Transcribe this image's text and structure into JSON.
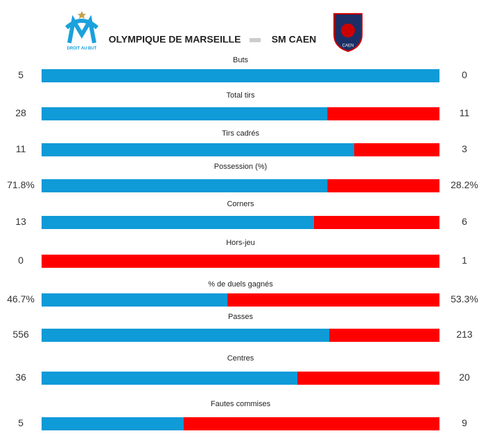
{
  "chart_data": {
    "type": "bar",
    "orientation": "horizontal",
    "stacked": "percent",
    "title": "OLYMPIQUE DE MARSEILLE",
    "subtitle": "SM CAEN",
    "annotations": [
      "DROIT AU BUT",
      "CAEN"
    ],
    "categories": [
      "Buts",
      "Total tirs",
      "Tirs cadrés",
      "Possession (%)",
      "Corners",
      "Hors-jeu",
      "% de duels gagnés",
      "Passes",
      "Centres",
      "Fautes commises"
    ],
    "series": [
      {
        "name": "OLYMPIQUE DE MARSEILLE",
        "color": "#0f9ad8",
        "values": [
          5,
          28,
          11,
          71.8,
          13,
          0,
          46.7,
          556,
          36,
          5
        ],
        "value_labels": [
          "5",
          "28",
          "11",
          "71.8%",
          "13",
          "0",
          "46.7%",
          "556",
          "36",
          "5"
        ]
      },
      {
        "name": "SM CAEN",
        "color": "#ff0000",
        "values": [
          0,
          11,
          3,
          28.2,
          6,
          1,
          53.3,
          213,
          20,
          9
        ],
        "value_labels": [
          "0",
          "11",
          "3",
          "28.2%",
          "6",
          "1",
          "53.3%",
          "213",
          "20",
          "9"
        ]
      }
    ]
  }
}
